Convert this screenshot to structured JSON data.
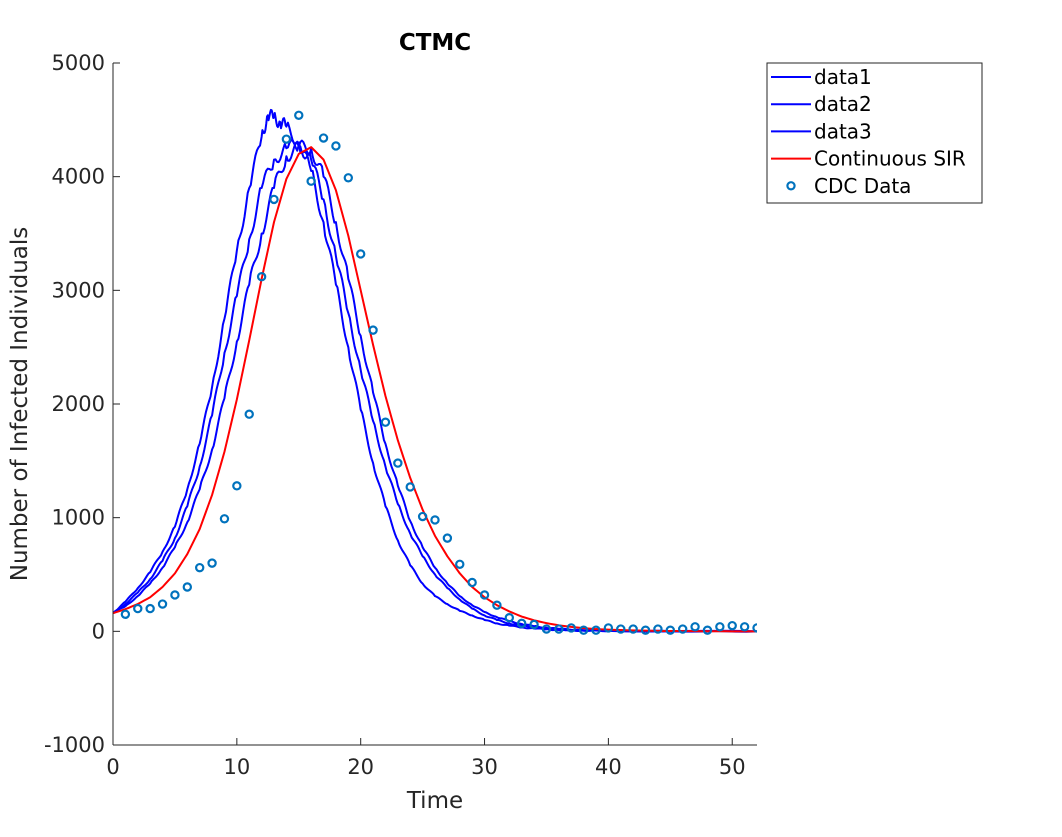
{
  "chart_data": {
    "type": "line",
    "title": "CTMC",
    "xlabel": "Time",
    "ylabel": "Number of Infected Individuals",
    "xlim": [
      0,
      52
    ],
    "ylim": [
      -1000,
      5000
    ],
    "xticks": [
      0,
      10,
      20,
      30,
      40,
      50
    ],
    "yticks": [
      -1000,
      0,
      1000,
      2000,
      3000,
      4000,
      5000
    ],
    "grid": false,
    "legend_position": "top-right (outside plot)",
    "series": [
      {
        "name": "data1",
        "kind": "line",
        "color": "#0000ff",
        "x": [
          0,
          1,
          2,
          3,
          4,
          5,
          6,
          7,
          8,
          9,
          10,
          11,
          12,
          12.5,
          13,
          13.5,
          14,
          15,
          16,
          17,
          18,
          19,
          20,
          21,
          22,
          23,
          24,
          25,
          26,
          27,
          28,
          29,
          30,
          31,
          32,
          33,
          34,
          35,
          36,
          37,
          38,
          40,
          45,
          52
        ],
        "y": [
          160,
          260,
          380,
          520,
          700,
          920,
          1250,
          1650,
          2150,
          2750,
          3350,
          3900,
          4350,
          4540,
          4520,
          4480,
          4440,
          4300,
          4050,
          3600,
          3050,
          2500,
          1950,
          1480,
          1100,
          800,
          580,
          420,
          310,
          240,
          180,
          140,
          100,
          70,
          50,
          35,
          25,
          18,
          12,
          8,
          5,
          3,
          1,
          0
        ]
      },
      {
        "name": "data2",
        "kind": "line",
        "color": "#0000ff",
        "x": [
          0,
          1,
          2,
          3,
          4,
          5,
          6,
          7,
          8,
          9,
          10,
          11,
          12,
          13,
          14,
          15,
          16,
          17,
          18,
          19,
          20,
          21,
          22,
          23,
          24,
          25,
          26,
          27,
          28,
          29,
          30,
          31,
          32,
          33,
          34,
          35,
          36,
          38,
          40,
          45,
          52
        ],
        "y": [
          160,
          240,
          340,
          460,
          620,
          820,
          1100,
          1450,
          1900,
          2450,
          2950,
          3450,
          3900,
          4150,
          4250,
          4280,
          4150,
          3800,
          3300,
          2800,
          2300,
          1850,
          1450,
          1120,
          860,
          660,
          500,
          380,
          280,
          200,
          140,
          100,
          70,
          50,
          35,
          24,
          16,
          8,
          4,
          1,
          0
        ]
      },
      {
        "name": "data3",
        "kind": "line",
        "color": "#0000ff",
        "x": [
          0,
          1,
          2,
          3,
          4,
          5,
          6,
          7,
          8,
          9,
          10,
          11,
          12,
          13,
          14,
          15,
          16,
          17,
          18,
          19,
          20,
          21,
          22,
          23,
          24,
          25,
          26,
          27,
          28,
          29,
          30,
          31,
          32,
          33,
          34,
          35,
          36,
          38,
          40,
          45,
          52
        ],
        "y": [
          160,
          220,
          310,
          420,
          560,
          740,
          960,
          1250,
          1600,
          2050,
          2550,
          3050,
          3500,
          3900,
          4180,
          4260,
          4250,
          4000,
          3600,
          3100,
          2600,
          2100,
          1650,
          1280,
          970,
          740,
          560,
          420,
          310,
          230,
          170,
          125,
          90,
          65,
          45,
          32,
          22,
          10,
          5,
          1,
          0
        ]
      },
      {
        "name": "Continuous SIR",
        "kind": "line",
        "color": "#ff0000",
        "x": [
          0,
          1,
          2,
          3,
          4,
          5,
          6,
          7,
          8,
          9,
          10,
          11,
          12,
          13,
          14,
          15,
          16,
          17,
          18,
          19,
          20,
          21,
          22,
          23,
          24,
          25,
          26,
          27,
          28,
          29,
          30,
          31,
          32,
          33,
          34,
          35,
          36,
          37,
          38,
          39,
          40,
          42,
          44,
          46,
          48,
          50,
          52
        ],
        "y": [
          160,
          195,
          240,
          300,
          390,
          510,
          680,
          900,
          1200,
          1580,
          2040,
          2560,
          3100,
          3600,
          3980,
          4200,
          4260,
          4150,
          3880,
          3480,
          3000,
          2520,
          2070,
          1680,
          1350,
          1070,
          840,
          660,
          510,
          390,
          300,
          230,
          175,
          130,
          97,
          72,
          53,
          39,
          28,
          20,
          15,
          8,
          4,
          2,
          1,
          0,
          0
        ]
      },
      {
        "name": "CDC Data",
        "kind": "scatter",
        "color": "#0072bd",
        "x": [
          1,
          2,
          3,
          4,
          5,
          6,
          7,
          8,
          9,
          10,
          11,
          12,
          13,
          14,
          15,
          16,
          17,
          18,
          19,
          20,
          21,
          22,
          23,
          24,
          25,
          26,
          27,
          28,
          29,
          30,
          31,
          32,
          33,
          34,
          35,
          36,
          37,
          38,
          39,
          40,
          41,
          42,
          43,
          44,
          45,
          46,
          47,
          48,
          49,
          50,
          51,
          52
        ],
        "y": [
          150,
          200,
          200,
          240,
          320,
          390,
          560,
          600,
          990,
          1280,
          1910,
          3120,
          3800,
          4330,
          4540,
          3960,
          4340,
          4270,
          3990,
          3320,
          2650,
          1840,
          1480,
          1270,
          1010,
          980,
          820,
          590,
          430,
          320,
          230,
          120,
          70,
          60,
          20,
          20,
          30,
          10,
          10,
          30,
          20,
          20,
          10,
          20,
          10,
          20,
          40,
          10,
          40,
          50,
          40,
          30
        ]
      }
    ]
  }
}
